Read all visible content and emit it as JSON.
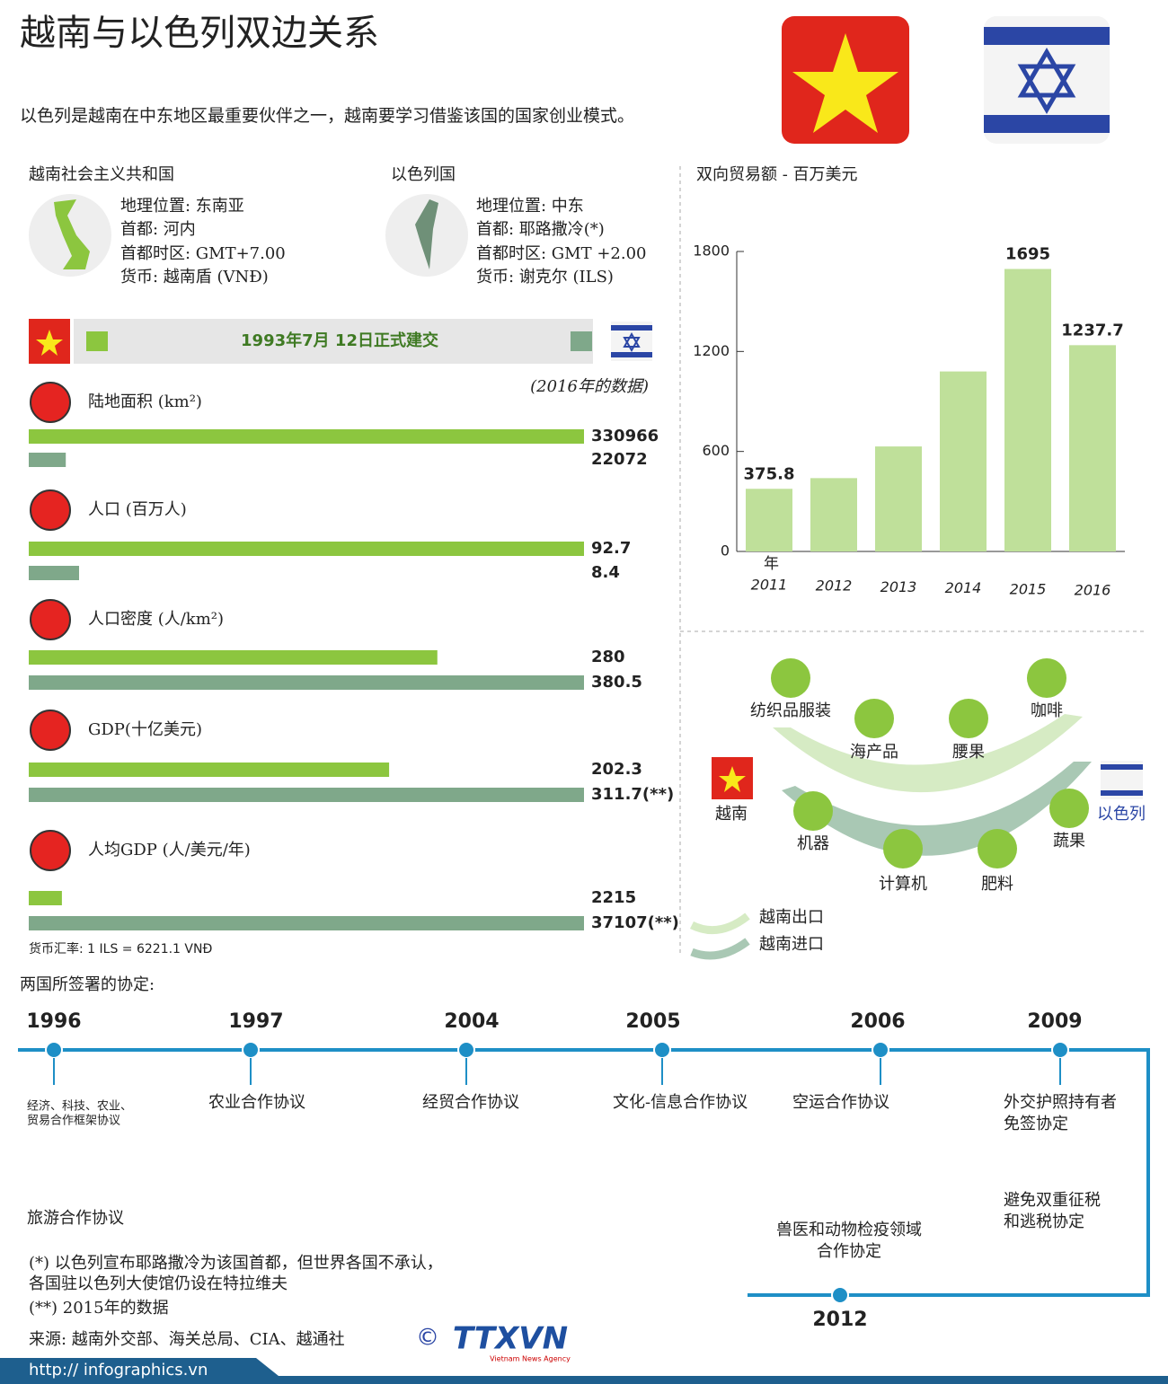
{
  "header": {
    "title": "越南与以色列双边关系",
    "subtitle": "以色列是越南在中东地区最重要伙伴之一，越南要学习借鉴该国的国家创业模式。"
  },
  "countries": [
    {
      "name": "越南社会主义共和国",
      "lines": [
        "地理位置: 东南亚",
        "首都: 河内",
        "首都时区: GMT+7.00",
        "货币: 越南盾 (VNĐ)"
      ]
    },
    {
      "name": "以色列国",
      "lines": [
        "地理位置: 中东",
        "首都: 耶路撒冷(*)",
        "首都时区: GMT +2.00",
        "货币: 谢克尔 (ILS)"
      ]
    }
  ],
  "banner": "1993年7月 12日正式建交",
  "data_note": "(2016年的数据)",
  "chart_data": [
    {
      "type": "hbar",
      "title": "陆地面积 (km²)",
      "values": [
        330966,
        22072
      ],
      "colors": [
        "#8cc63f",
        "#7fa88a"
      ]
    },
    {
      "type": "hbar",
      "title": "人口 (百万人)",
      "values": [
        92.7,
        8.4
      ],
      "colors": [
        "#8cc63f",
        "#7fa88a"
      ]
    },
    {
      "type": "hbar",
      "title": "人口密度 (人/km²)",
      "values": [
        280,
        380.5
      ],
      "colors": [
        "#8cc63f",
        "#7fa88a"
      ]
    },
    {
      "type": "hbar",
      "title": "GDP(十亿美元)",
      "values": [
        202.3,
        311.7
      ],
      "value_labels": [
        "202.3",
        "311.7(**)"
      ],
      "colors": [
        "#8cc63f",
        "#7fa88a"
      ]
    },
    {
      "type": "hbar",
      "title": "人均GDP (人/美元/年)",
      "values": [
        2215,
        37107
      ],
      "value_labels": [
        "2215",
        "37107(**)"
      ],
      "colors": [
        "#8cc63f",
        "#7fa88a"
      ]
    },
    {
      "type": "bar",
      "title": "双向贸易额 - 百万美元",
      "x_label": "年",
      "categories": [
        "2011",
        "2012",
        "2013",
        "2014",
        "2015",
        "2016"
      ],
      "values": [
        375.8,
        440,
        630,
        1080,
        1695,
        1237.7
      ],
      "value_labels": [
        "375.8",
        null,
        null,
        null,
        "1695",
        "1237.7"
      ],
      "color": "#bfe09a",
      "ylim": [
        0,
        1800
      ],
      "yticks": [
        0,
        600,
        1200,
        1800
      ]
    }
  ],
  "exchange_note": "货币汇率: 1 ILS = 6221.1 VNĐ",
  "trade_flow": {
    "vietnam": "越南",
    "israel": "以色列",
    "exports": [
      "纺织品服装",
      "海产品",
      "腰果",
      "咖啡"
    ],
    "imports": [
      "机器",
      "计算机",
      "肥料",
      "蔬果"
    ],
    "legend": [
      "越南出口",
      "越南进口"
    ]
  },
  "agreements": {
    "title": "两国所签署的协定:",
    "items": [
      {
        "year": "1996",
        "texts": [
          [
            "经济、科技、农业、",
            "贸易合作框架协议"
          ],
          [
            "旅游合作协议"
          ]
        ]
      },
      {
        "year": "1997",
        "texts": [
          [
            "农业合作协议"
          ]
        ]
      },
      {
        "year": "2004",
        "texts": [
          [
            "经贸合作协议"
          ]
        ]
      },
      {
        "year": "2005",
        "texts": [
          [
            "文化-信息合作协议"
          ]
        ]
      },
      {
        "year": "2006",
        "texts": [
          [
            "空运合作协议"
          ]
        ]
      },
      {
        "year": "2009",
        "texts": [
          [
            "外交护照持有者",
            "免签协定"
          ],
          [
            "避免双重征税",
            "和逃税协定"
          ]
        ]
      },
      {
        "year": "2012",
        "texts": [
          [
            "兽医和动物检疫领域",
            "合作协定"
          ]
        ]
      }
    ]
  },
  "footnotes": [
    "(*) 以色列宣布耶路撒冷为该国首都，但世界各国不承认，",
    "各国驻以色列大使馆仍设在特拉维夫",
    "(**) 2015年的数据"
  ],
  "source": "来源: 越南外交部、海关总局、CIA、越通社",
  "logo": {
    "symbol": "©",
    "name": "TTXVN",
    "tagline": "Vietnam News Agency"
  },
  "url": "http:// infographics.vn"
}
